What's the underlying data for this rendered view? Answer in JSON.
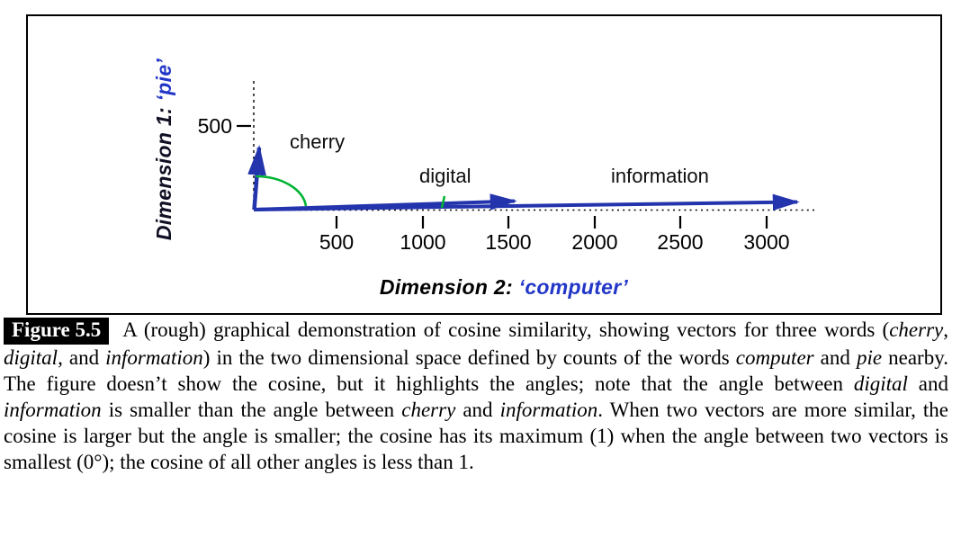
{
  "figure": {
    "chart": {
      "y_axis_title_prefix": "Dimension 1: ",
      "y_axis_title_word": "‘pie’",
      "x_axis_title_prefix": "Dimension 2: ",
      "x_axis_title_word": "‘computer’",
      "y_tick_label": "500",
      "x_tick_labels": [
        "500",
        "1000",
        "1500",
        "2000",
        "2500",
        "3000"
      ],
      "vector_labels": {
        "cherry": "cherry",
        "digital": "digital",
        "information": "information"
      },
      "colors": {
        "vector_blue": "#2334ad",
        "axis_word_blue": "#2236c8",
        "angle_green": "#00b332",
        "axis_black": "#000000"
      }
    },
    "caption": {
      "badge": "Figure 5.5",
      "segments": [
        {
          "text": "A (rough) graphical demonstration of cosine similarity, showing vectors for three words (",
          "italic": false
        },
        {
          "text": "cherry",
          "italic": true
        },
        {
          "text": ", ",
          "italic": false
        },
        {
          "text": "digital",
          "italic": true
        },
        {
          "text": ", and ",
          "italic": false
        },
        {
          "text": "information",
          "italic": true
        },
        {
          "text": ") in the two dimensional space defined by counts of the words ",
          "italic": false
        },
        {
          "text": "computer",
          "italic": true
        },
        {
          "text": " and ",
          "italic": false
        },
        {
          "text": "pie",
          "italic": true
        },
        {
          "text": " nearby. The figure doesn’t show the cosine, but it highlights the angles; note that the angle between ",
          "italic": false
        },
        {
          "text": "digital",
          "italic": true
        },
        {
          "text": " and ",
          "italic": false
        },
        {
          "text": "information",
          "italic": true
        },
        {
          "text": " is smaller than the angle between ",
          "italic": false
        },
        {
          "text": "cherry",
          "italic": true
        },
        {
          "text": " and ",
          "italic": false
        },
        {
          "text": "information",
          "italic": true
        },
        {
          "text": ". When two vectors are more similar, the cosine is larger but the angle is smaller; the cosine has its maximum (1) when the angle between two vectors is smallest (0°); the cosine of all other angles is less than 1.",
          "italic": false
        }
      ]
    }
  },
  "chart_data": {
    "type": "scatter",
    "subtype": "2d-word-vectors",
    "title": "",
    "xlabel": "Dimension 2: ‘computer’",
    "ylabel": "Dimension 1: ‘pie’",
    "xlim": [
      0,
      3400
    ],
    "ylim": [
      0,
      600
    ],
    "x_ticks": [
      500,
      1000,
      1500,
      2000,
      2500,
      3000
    ],
    "y_ticks": [
      500
    ],
    "grid": false,
    "legend": false,
    "series": [
      {
        "name": "cherry",
        "vector_from": [
          0,
          0
        ],
        "vector_to": [
          40,
          430
        ]
      },
      {
        "name": "digital",
        "vector_from": [
          0,
          0
        ],
        "vector_to": [
          1600,
          55
        ]
      },
      {
        "name": "information",
        "vector_from": [
          0,
          0
        ],
        "vector_to": [
          3280,
          50
        ]
      }
    ],
    "annotations": [
      {
        "type": "angle-arc",
        "between": [
          "cherry",
          "information"
        ],
        "color": "#00b332"
      },
      {
        "type": "angle-tick",
        "between": [
          "digital",
          "information"
        ],
        "at_x": 1150,
        "color": "#00b332"
      }
    ]
  }
}
